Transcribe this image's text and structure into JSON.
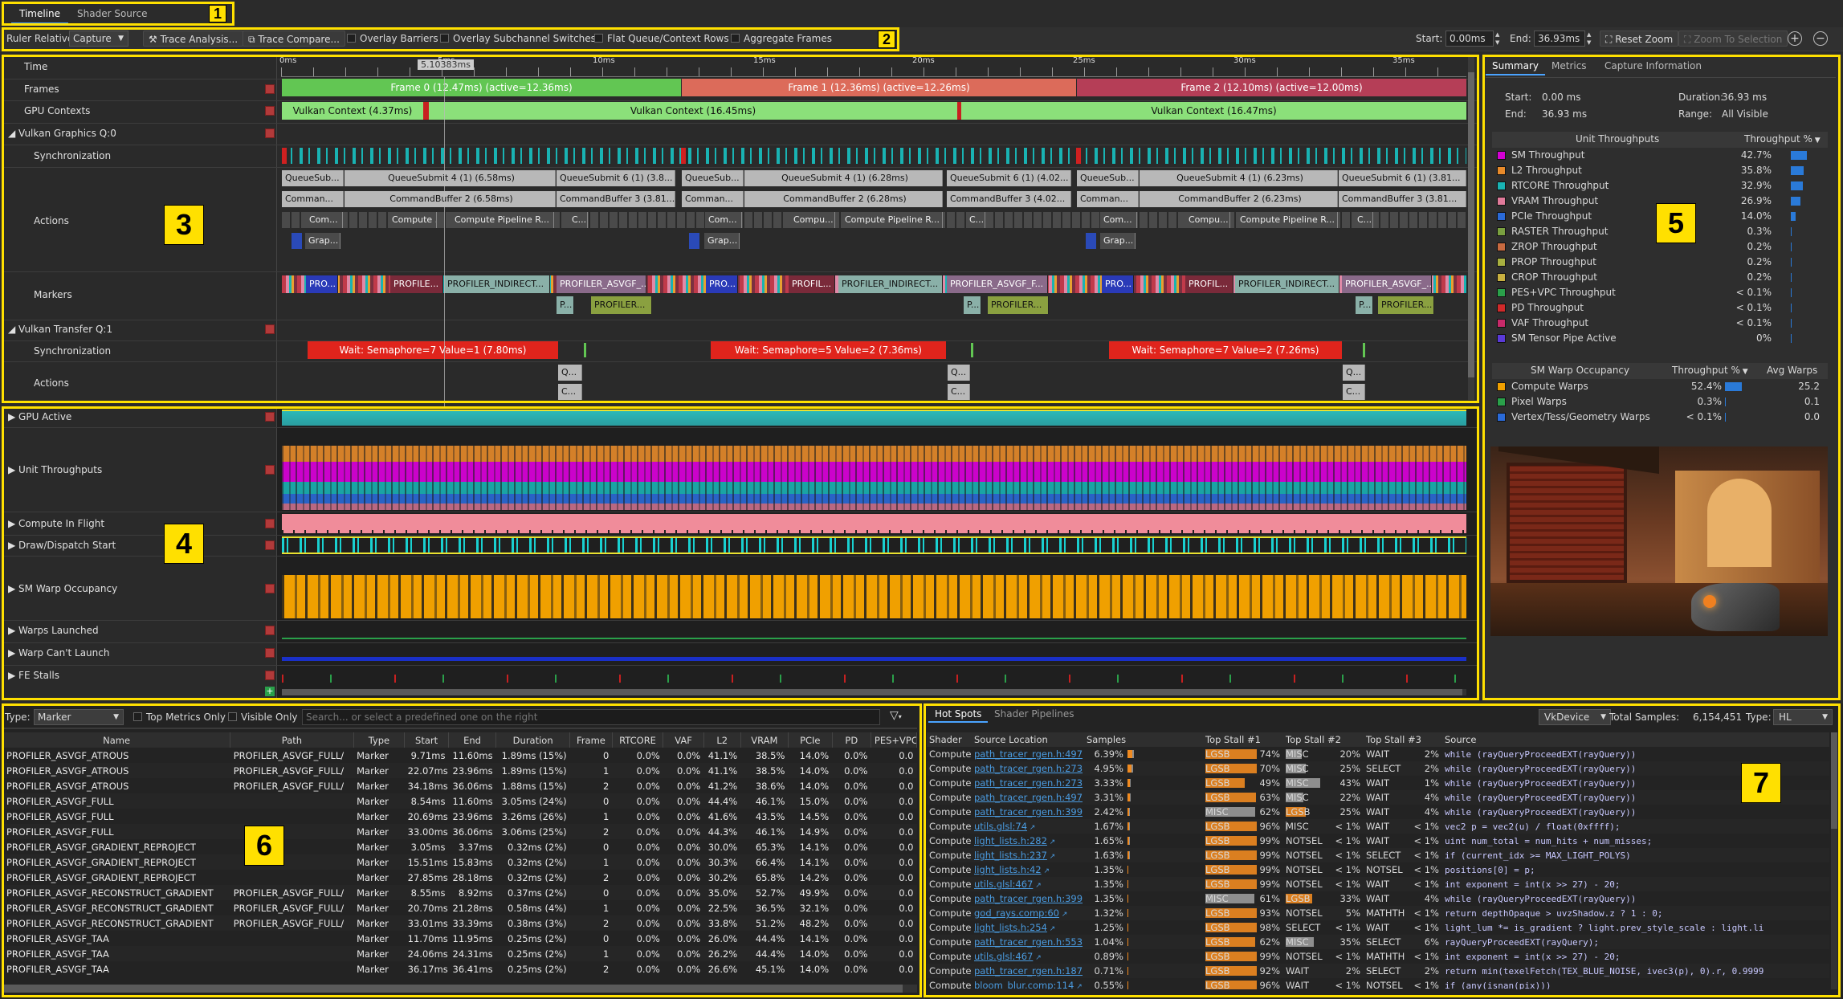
{
  "tabs": [
    {
      "label": "Timeline",
      "active": true
    },
    {
      "label": "Shader Source",
      "active": false
    }
  ],
  "toolbar": {
    "ruler_label": "Ruler Relative:",
    "ruler_value": "Capture",
    "trace_analysis": "Trace Analysis...",
    "trace_compare": "Trace Compare...",
    "overlay_barriers": "Overlay Barriers",
    "overlay_subchannel": "Overlay Subchannel Switches",
    "flat_queue": "Flat Queue/Context Rows",
    "aggregate_frames": "Aggregate Frames",
    "start_label": "Start:",
    "start_value": "0.00ms",
    "end_label": "End:",
    "end_value": "36.93ms",
    "reset_zoom": "Reset Zoom",
    "zoom_selection": "Zoom To Selection"
  },
  "callouts": [
    "1",
    "2",
    "3",
    "4",
    "5",
    "6",
    "7"
  ],
  "timeline": {
    "time_label": "Time",
    "cursor_time": "5.10383ms",
    "ticks": [
      "0ms",
      "5ms",
      "10ms",
      "15ms",
      "20ms",
      "25ms",
      "30ms",
      "35ms"
    ],
    "rows": [
      "Frames",
      "GPU Contexts",
      "Vulkan Graphics Q:0",
      "Synchronization",
      "Actions",
      "Markers",
      "Vulkan Transfer Q:1",
      "Synchronization",
      "Actions"
    ],
    "frames": [
      "Frame 0 (12.47ms) (active=12.36ms)",
      "Frame 1 (12.36ms) (active=12.26ms)",
      "Frame 2 (12.10ms) (active=12.00ms)"
    ],
    "contexts": [
      "Vulkan Context (4.37ms)",
      "Vulkan Context (16.45ms)",
      "Vulkan Context (16.47ms)"
    ],
    "actions_row1": [
      "QueueSub...",
      "QueueSubmit 4 (1) (6.58ms)",
      "QueueSubmit 6 (1) (3.8...",
      "QueueSub...",
      "QueueSubmit 4 (1) (6.28ms)",
      "QueueSubmit 6 (1) (4.02...",
      "QueueSub...",
      "QueueSubmit 4 (1) (6.23ms)",
      "QueueSubmit 6 (1) (3.81..."
    ],
    "actions_row2": [
      "Comman...",
      "CommandBuffer 2 (6.58ms)",
      "CommandBuffer 3 (3.81...",
      "Comman...",
      "CommandBuffer 2 (6.28ms)",
      "CommandBuffer 3 (4.02...",
      "Comman...",
      "CommandBuffer 2 (6.23ms)",
      "CommandBuffer 3 (3.81..."
    ],
    "actions_row3": [
      "Com...",
      "Compute ...",
      "Compute Pipeline R...",
      "C...",
      "Com...",
      "Compu...",
      "Compute Pipeline R...",
      "C...",
      "Com...",
      "Compu...",
      "Compute Pipeline R...",
      "C..."
    ],
    "actions_row4": [
      "Grap...",
      "Grap...",
      "Grap..."
    ],
    "markers_row1": [
      "PRO...",
      "PROFILE...",
      "PROFILER_INDIRECT...",
      "PROFILER_ASVGF_...",
      "PRO...",
      "PROFIL...",
      "PROFILER_INDIRECT...",
      "PROFILER_ASVGF_F...",
      "PRO...",
      "PROFIL...",
      "PROFILER_INDIRECT...",
      "PROFILER_ASVGF_..."
    ],
    "markers_row2": [
      "P...",
      "PROFILER...",
      "P...",
      "PROFILER...",
      "P...",
      "PROFILER..."
    ],
    "waits": [
      "Wait: Semaphore=7 Value=1 (7.80ms)",
      "Wait: Semaphore=5 Value=2 (7.36ms)",
      "Wait: Semaphore=7 Value=2 (7.26ms)"
    ],
    "transfer_actions": [
      "Q...",
      "C...",
      "Q...",
      "C...",
      "Q...",
      "C..."
    ]
  },
  "metrics_rows": [
    "GPU Active",
    "Unit Throughputs",
    "Compute In Flight",
    "Draw/Dispatch Start",
    "SM Warp Occupancy",
    "Warps Launched",
    "Warp Can't Launch",
    "FE Stalls"
  ],
  "summary": {
    "tabs": [
      "Summary",
      "Metrics",
      "Capture Information"
    ],
    "start_label": "Start:",
    "start": "0.00 ms",
    "duration_label": "Duration:",
    "duration": "36.93 ms",
    "end_label": "End:",
    "end": "36.93 ms",
    "range_label": "Range:",
    "range": "All Visible",
    "unit_header": "Unit Throughputs",
    "pct_header": "Throughput %",
    "units": [
      {
        "name": "SM Throughput",
        "pct": "42.7%",
        "frac": 0.427,
        "color": "#d400d4"
      },
      {
        "name": "L2 Throughput",
        "pct": "35.8%",
        "frac": 0.358,
        "color": "#e88a2a"
      },
      {
        "name": "RTCORE Throughput",
        "pct": "32.9%",
        "frac": 0.329,
        "color": "#19b3b3"
      },
      {
        "name": "VRAM Throughput",
        "pct": "26.9%",
        "frac": 0.269,
        "color": "#e07a9a"
      },
      {
        "name": "PCIe Throughput",
        "pct": "14.0%",
        "frac": 0.14,
        "color": "#2a6ad8"
      },
      {
        "name": "RASTER Throughput",
        "pct": "0.3%",
        "frac": 0.003,
        "color": "#7aa040"
      },
      {
        "name": "ZROP Throughput",
        "pct": "0.2%",
        "frac": 0.002,
        "color": "#c86a40"
      },
      {
        "name": "PROP Throughput",
        "pct": "0.2%",
        "frac": 0.002,
        "color": "#a8b040"
      },
      {
        "name": "CROP Throughput",
        "pct": "0.2%",
        "frac": 0.002,
        "color": "#c8b040"
      },
      {
        "name": "PES+VPC Throughput",
        "pct": "< 0.1%",
        "frac": 0.0,
        "color": "#2aa04a"
      },
      {
        "name": "PD Throughput",
        "pct": "< 0.1%",
        "frac": 0.0,
        "color": "#d02a2a"
      },
      {
        "name": "VAF Throughput",
        "pct": "< 0.1%",
        "frac": 0.0,
        "color": "#c82a6a"
      },
      {
        "name": "SM Tensor Pipe Active",
        "pct": "0%",
        "frac": 0.0,
        "color": "#5a3ad8"
      }
    ],
    "occ_header": "SM Warp Occupancy",
    "occ_pct_header": "Throughput %",
    "occ_avg_header": "Avg Warps",
    "occ": [
      {
        "name": "Compute Warps",
        "pct": "52.4%",
        "frac": 0.524,
        "avg": "25.2",
        "color": "#f0a000"
      },
      {
        "name": "Pixel Warps",
        "pct": "0.3%",
        "frac": 0.003,
        "avg": "0.1",
        "color": "#2aa04a"
      },
      {
        "name": "Vertex/Tess/Geometry Warps",
        "pct": "< 0.1%",
        "frac": 0.0,
        "avg": "0.0",
        "color": "#2a6ad8"
      }
    ]
  },
  "filter": {
    "type_label": "Type:",
    "type_value": "Marker",
    "top_metrics": "Top Metrics Only",
    "visible_only": "Visible Only",
    "search_placeholder": "Search... or select a predefined one on the right"
  },
  "table6": {
    "headers": [
      "Name",
      "Path",
      "Type",
      "Start",
      "End",
      "Duration",
      "Frame",
      "RTCORE",
      "VAF",
      "L2",
      "VRAM",
      "PCIe",
      "PD",
      "PES+VPC"
    ],
    "rows": [
      [
        "PROFILER_ASVGF_ATROUS",
        "PROFILER_ASVGF_FULL/",
        "Marker",
        "9.71ms",
        "11.60ms",
        "1.89ms (15%)",
        "0",
        "0.0%",
        "0.0%",
        "41.1%",
        "38.5%",
        "14.0%",
        "0.0%",
        "0.0"
      ],
      [
        "PROFILER_ASVGF_ATROUS",
        "PROFILER_ASVGF_FULL/",
        "Marker",
        "22.07ms",
        "23.96ms",
        "1.89ms (15%)",
        "1",
        "0.0%",
        "0.0%",
        "41.1%",
        "38.5%",
        "14.0%",
        "0.0%",
        "0.0"
      ],
      [
        "PROFILER_ASVGF_ATROUS",
        "PROFILER_ASVGF_FULL/",
        "Marker",
        "34.18ms",
        "36.06ms",
        "1.88ms (15%)",
        "2",
        "0.0%",
        "0.0%",
        "41.2%",
        "38.6%",
        "14.0%",
        "0.0%",
        "0.0"
      ],
      [
        "PROFILER_ASVGF_FULL",
        "",
        "Marker",
        "8.54ms",
        "11.60ms",
        "3.05ms (24%)",
        "0",
        "0.0%",
        "0.0%",
        "44.4%",
        "46.1%",
        "15.0%",
        "0.0%",
        "0.0"
      ],
      [
        "PROFILER_ASVGF_FULL",
        "",
        "Marker",
        "20.69ms",
        "23.96ms",
        "3.26ms (26%)",
        "1",
        "0.0%",
        "0.0%",
        "41.6%",
        "43.5%",
        "14.5%",
        "0.0%",
        "0.0"
      ],
      [
        "PROFILER_ASVGF_FULL",
        "",
        "Marker",
        "33.00ms",
        "36.06ms",
        "3.06ms (25%)",
        "2",
        "0.0%",
        "0.0%",
        "44.3%",
        "46.1%",
        "14.9%",
        "0.0%",
        "0.0"
      ],
      [
        "PROFILER_ASVGF_GRADIENT_REPROJECT",
        "",
        "Marker",
        "3.05ms",
        "3.37ms",
        "0.32ms (2%)",
        "0",
        "0.0%",
        "0.0%",
        "30.0%",
        "65.3%",
        "14.1%",
        "0.0%",
        "0.0"
      ],
      [
        "PROFILER_ASVGF_GRADIENT_REPROJECT",
        "",
        "Marker",
        "15.51ms",
        "15.83ms",
        "0.32ms (2%)",
        "1",
        "0.0%",
        "0.0%",
        "30.3%",
        "66.4%",
        "14.1%",
        "0.0%",
        "0.0"
      ],
      [
        "PROFILER_ASVGF_GRADIENT_REPROJECT",
        "",
        "Marker",
        "27.85ms",
        "28.18ms",
        "0.32ms (2%)",
        "2",
        "0.0%",
        "0.0%",
        "30.2%",
        "65.8%",
        "14.2%",
        "0.0%",
        "0.0"
      ],
      [
        "PROFILER_ASVGF_RECONSTRUCT_GRADIENT",
        "PROFILER_ASVGF_FULL/",
        "Marker",
        "8.55ms",
        "8.92ms",
        "0.37ms (2%)",
        "0",
        "0.0%",
        "0.0%",
        "35.0%",
        "52.7%",
        "49.9%",
        "0.0%",
        "0.0"
      ],
      [
        "PROFILER_ASVGF_RECONSTRUCT_GRADIENT",
        "PROFILER_ASVGF_FULL/",
        "Marker",
        "20.70ms",
        "21.28ms",
        "0.58ms (4%)",
        "1",
        "0.0%",
        "0.0%",
        "22.5%",
        "36.5%",
        "32.1%",
        "0.0%",
        "0.0"
      ],
      [
        "PROFILER_ASVGF_RECONSTRUCT_GRADIENT",
        "PROFILER_ASVGF_FULL/",
        "Marker",
        "33.01ms",
        "33.39ms",
        "0.38ms (3%)",
        "2",
        "0.0%",
        "0.0%",
        "33.8%",
        "51.2%",
        "48.2%",
        "0.0%",
        "0.0"
      ],
      [
        "PROFILER_ASVGF_TAA",
        "",
        "Marker",
        "11.70ms",
        "11.95ms",
        "0.25ms (2%)",
        "0",
        "0.0%",
        "0.0%",
        "26.0%",
        "44.4%",
        "14.1%",
        "0.0%",
        "0.0"
      ],
      [
        "PROFILER_ASVGF_TAA",
        "",
        "Marker",
        "24.06ms",
        "24.31ms",
        "0.25ms (2%)",
        "1",
        "0.0%",
        "0.0%",
        "26.2%",
        "44.4%",
        "14.0%",
        "0.0%",
        "0.0"
      ],
      [
        "PROFILER_ASVGF_TAA",
        "",
        "Marker",
        "36.17ms",
        "36.41ms",
        "0.25ms (2%)",
        "2",
        "0.0%",
        "0.0%",
        "26.6%",
        "45.1%",
        "14.0%",
        "0.0%",
        "0.0"
      ]
    ]
  },
  "hotspots": {
    "tabs": [
      "Hot Spots",
      "Shader Pipelines"
    ],
    "device": "VkDevice",
    "total_label": "Total Samples:",
    "total": "6,154,451",
    "type_label": "Type:",
    "type_value": "HL",
    "headers": [
      "Shader",
      "Source Location",
      "Samples",
      "Top Stall #1",
      "Top Stall #2",
      "Top Stall #3",
      "Source"
    ],
    "rows": [
      {
        "shader": "Compute",
        "loc": "path_tracer_rgen.h:497",
        "samples": "6.39%",
        "sfrac": 0.639,
        "s1": "LGSB",
        "p1": "74%",
        "s2": "MISC",
        "p2": "20%",
        "s3": "WAIT",
        "p3": "2%",
        "src": "while (rayQueryProceedEXT(rayQuery))"
      },
      {
        "shader": "Compute",
        "loc": "path_tracer_rgen.h:273",
        "samples": "4.95%",
        "sfrac": 0.495,
        "s1": "LGSB",
        "p1": "70%",
        "s2": "MISC",
        "p2": "25%",
        "s3": "SELECT",
        "p3": "2%",
        "src": "while (rayQueryProceedEXT(rayQuery))"
      },
      {
        "shader": "Compute",
        "loc": "path_tracer_rgen.h:273",
        "samples": "3.33%",
        "sfrac": 0.333,
        "s1": "LGSB",
        "p1": "49%",
        "s2": "MISC",
        "p2": "43%",
        "s3": "WAIT",
        "p3": "1%",
        "src": "while (rayQueryProceedEXT(rayQuery))"
      },
      {
        "shader": "Compute",
        "loc": "path_tracer_rgen.h:497",
        "samples": "3.31%",
        "sfrac": 0.331,
        "s1": "LGSB",
        "p1": "63%",
        "s2": "MISC",
        "p2": "22%",
        "s3": "WAIT",
        "p3": "4%",
        "src": "while (rayQueryProceedEXT(rayQuery))"
      },
      {
        "shader": "Compute",
        "loc": "path_tracer_rgen.h:399",
        "samples": "2.42%",
        "sfrac": 0.242,
        "s1": "MISC",
        "p1": "62%",
        "s2": "LGSB",
        "p2": "25%",
        "s3": "WAIT",
        "p3": "4%",
        "src": "while (rayQueryProceedEXT(rayQuery))"
      },
      {
        "shader": "Compute",
        "loc": "utils.glsl:74",
        "samples": "1.67%",
        "sfrac": 0.167,
        "s1": "LGSB",
        "p1": "96%",
        "s2": "MISC",
        "p2": "< 1%",
        "s3": "WAIT",
        "p3": "< 1%",
        "src": "vec2 p = vec2(u) / float(0xffff);"
      },
      {
        "shader": "Compute",
        "loc": "light_lists.h:282",
        "samples": "1.65%",
        "sfrac": 0.165,
        "s1": "LGSB",
        "p1": "99%",
        "s2": "NOTSEL",
        "p2": "< 1%",
        "s3": "WAIT",
        "p3": "< 1%",
        "src": "uint num_total = num_hits + num_misses;"
      },
      {
        "shader": "Compute",
        "loc": "light_lists.h:237",
        "samples": "1.63%",
        "sfrac": 0.163,
        "s1": "LGSB",
        "p1": "99%",
        "s2": "NOTSEL",
        "p2": "< 1%",
        "s3": "SELECT",
        "p3": "< 1%",
        "src": "if (current_idx >= MAX_LIGHT_POLYS)"
      },
      {
        "shader": "Compute",
        "loc": "light_lists.h:42",
        "samples": "1.35%",
        "sfrac": 0.135,
        "s1": "LGSB",
        "p1": "99%",
        "s2": "NOTSEL",
        "p2": "< 1%",
        "s3": "NOTSEL",
        "p3": "< 1%",
        "src": "positions[0] = p;"
      },
      {
        "shader": "Compute",
        "loc": "utils.glsl:467",
        "samples": "1.35%",
        "sfrac": 0.135,
        "s1": "LGSB",
        "p1": "99%",
        "s2": "NOTSEL",
        "p2": "< 1%",
        "s3": "WAIT",
        "p3": "< 1%",
        "src": "int exponent = int(x >> 27) - 20;"
      },
      {
        "shader": "Compute",
        "loc": "path_tracer_rgen.h:399",
        "samples": "1.35%",
        "sfrac": 0.135,
        "s1": "MISC",
        "p1": "61%",
        "s2": "LGSB",
        "p2": "33%",
        "s3": "WAIT",
        "p3": "4%",
        "src": "while (rayQueryProceedEXT(rayQuery))"
      },
      {
        "shader": "Compute",
        "loc": "god_rays.comp:60",
        "samples": "1.32%",
        "sfrac": 0.132,
        "s1": "LGSB",
        "p1": "93%",
        "s2": "NOTSEL",
        "p2": "5%",
        "s3": "MATHTH",
        "p3": "< 1%",
        "src": "return depthOpaque > uvzShadow.z ? 1 : 0;"
      },
      {
        "shader": "Compute",
        "loc": "light_lists.h:254",
        "samples": "1.25%",
        "sfrac": 0.125,
        "s1": "LGSB",
        "p1": "98%",
        "s2": "SELECT",
        "p2": "< 1%",
        "s3": "WAIT",
        "p3": "< 1%",
        "src": "light_lum *= is_gradient ? light.prev_style_scale : light.li"
      },
      {
        "shader": "Compute",
        "loc": "path_tracer_rgen.h:553",
        "samples": "1.04%",
        "sfrac": 0.104,
        "s1": "LGSB",
        "p1": "62%",
        "s2": "MISC",
        "p2": "35%",
        "s3": "SELECT",
        "p3": "6%",
        "src": "rayQueryProceedEXT(rayQuery);"
      },
      {
        "shader": "Compute",
        "loc": "utils.glsl:467",
        "samples": "0.89%",
        "sfrac": 0.089,
        "s1": "LGSB",
        "p1": "99%",
        "s2": "NOTSEL",
        "p2": "< 1%",
        "s3": "MATHTH",
        "p3": "< 1%",
        "src": "int exponent = int(x >> 27) - 20;"
      },
      {
        "shader": "Compute",
        "loc": "path_tracer_rgen.h:187",
        "samples": "0.71%",
        "sfrac": 0.071,
        "s1": "LGSB",
        "p1": "92%",
        "s2": "WAIT",
        "p2": "2%",
        "s3": "SELECT",
        "p3": "2%",
        "src": "return min(texelFetch(TEX_BLUE_NOISE, ivec3(p), 0).r, 0.9999"
      },
      {
        "shader": "Compute",
        "loc": "bloom_blur.comp:114",
        "samples": "0.55%",
        "sfrac": 0.055,
        "s1": "LGSB",
        "p1": "96%",
        "s2": "WAIT",
        "p2": "< 1%",
        "s3": "NOTSEL",
        "p3": "< 1%",
        "src": "if (any(isnan(pix)))"
      }
    ]
  }
}
